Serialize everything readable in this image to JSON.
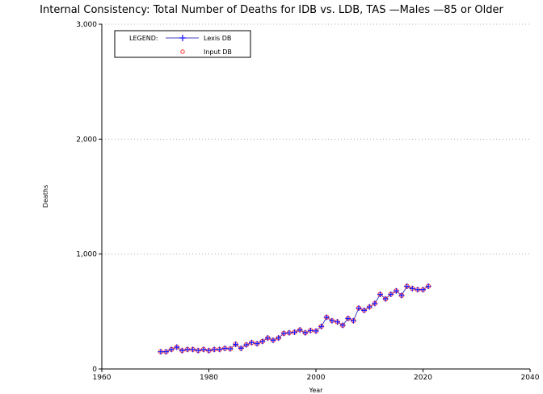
{
  "chart_data": {
    "type": "line",
    "title": "Internal Consistency: Total Number of Deaths for IDB vs. LDB, TAS —Males —85 or Older",
    "xlabel": "Year",
    "ylabel": "Deaths",
    "xlim": [
      1960,
      2040
    ],
    "ylim": [
      0,
      3000
    ],
    "x_ticks": [
      1960,
      1980,
      2000,
      2020,
      2040
    ],
    "x_tick_labels": [
      "1960",
      "1980",
      "2000",
      "2020",
      "2040"
    ],
    "y_ticks": [
      0,
      1000,
      2000,
      3000
    ],
    "y_tick_labels": [
      "0",
      "1,000",
      "2,000",
      "3,000"
    ],
    "grid": "dotted horizontal",
    "legend": {
      "title": "LEGEND:",
      "placement": "top-left",
      "entries": [
        "Lexis DB",
        "Input DB"
      ]
    },
    "x": [
      1971,
      1972,
      1973,
      1974,
      1975,
      1976,
      1977,
      1978,
      1979,
      1980,
      1981,
      1982,
      1983,
      1984,
      1985,
      1986,
      1987,
      1988,
      1989,
      1990,
      1991,
      1992,
      1993,
      1994,
      1995,
      1996,
      1997,
      1998,
      1999,
      2000,
      2001,
      2002,
      2003,
      2004,
      2005,
      2006,
      2007,
      2008,
      2009,
      2010,
      2011,
      2012,
      2013,
      2014,
      2015,
      2016,
      2017,
      2018,
      2019,
      2020,
      2021
    ],
    "series": [
      {
        "name": "Lexis DB",
        "marker": "plus",
        "color": "#1a1aff",
        "line_color": "#4040c0",
        "values": [
          150,
          150,
          170,
          190,
          160,
          170,
          170,
          160,
          170,
          160,
          170,
          170,
          180,
          175,
          215,
          180,
          210,
          230,
          220,
          240,
          270,
          250,
          270,
          310,
          315,
          320,
          340,
          315,
          335,
          330,
          370,
          450,
          420,
          410,
          380,
          440,
          420,
          530,
          510,
          540,
          570,
          650,
          610,
          650,
          680,
          640,
          720,
          700,
          690,
          690,
          720
        ]
      },
      {
        "name": "Input DB",
        "marker": "circle",
        "color": "#ff3030",
        "values": [
          150,
          150,
          170,
          190,
          160,
          170,
          170,
          160,
          170,
          160,
          170,
          170,
          180,
          175,
          215,
          180,
          210,
          230,
          220,
          240,
          270,
          250,
          270,
          310,
          315,
          320,
          340,
          315,
          335,
          330,
          370,
          450,
          420,
          410,
          380,
          440,
          420,
          530,
          510,
          540,
          570,
          650,
          610,
          650,
          680,
          640,
          720,
          700,
          690,
          690,
          720
        ]
      }
    ]
  }
}
